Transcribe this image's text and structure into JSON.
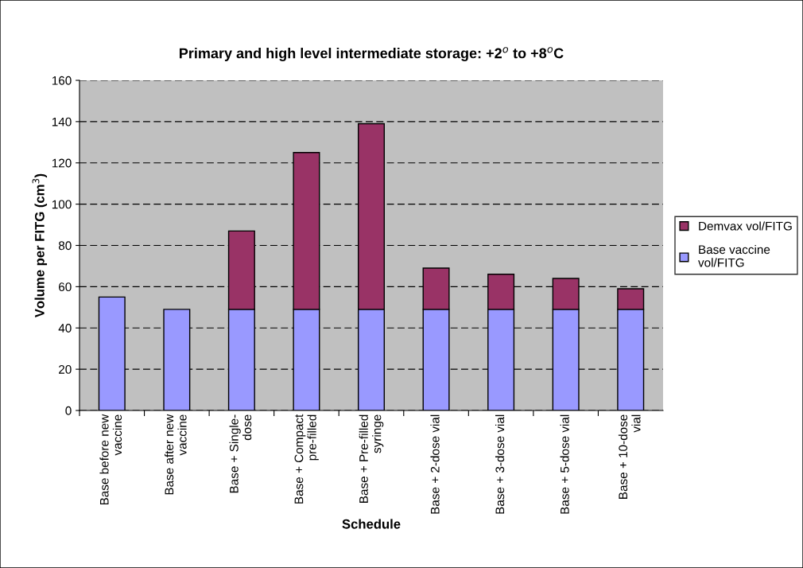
{
  "chart_data": {
    "type": "bar",
    "stacked": true,
    "title": "Primary and high level intermediate storage: +2$^{o}$ to +8$^{o}$C",
    "xlabel": "Schedule",
    "ylabel": "Volume per FITG (cm$^{3}$)",
    "categories": [
      "Base before new\nvaccine",
      "Base after new\nvaccine",
      "Base + Single-\ndose",
      "Base + Compact\npre-filled",
      "Base + Pre-filled\nsyringe",
      "Base + 2-dose vial",
      "Base + 3-dose vial",
      "Base + 5-dose vial",
      "Base + 10-dose\nvial"
    ],
    "series": [
      {
        "name": "Base vaccine\nvol/FITG",
        "color": "#9999ff",
        "values": [
          55,
          49,
          49,
          49,
          49,
          49,
          49,
          49,
          49
        ]
      },
      {
        "name": "Demvax vol/FITG",
        "color": "#993366",
        "values": [
          null,
          null,
          38,
          76,
          90,
          20,
          17,
          15,
          10
        ]
      }
    ],
    "ylim": [
      0,
      160
    ],
    "yticks": [
      0,
      20,
      40,
      60,
      80,
      100,
      120,
      140,
      160
    ],
    "grid": "y",
    "legend": "right"
  }
}
